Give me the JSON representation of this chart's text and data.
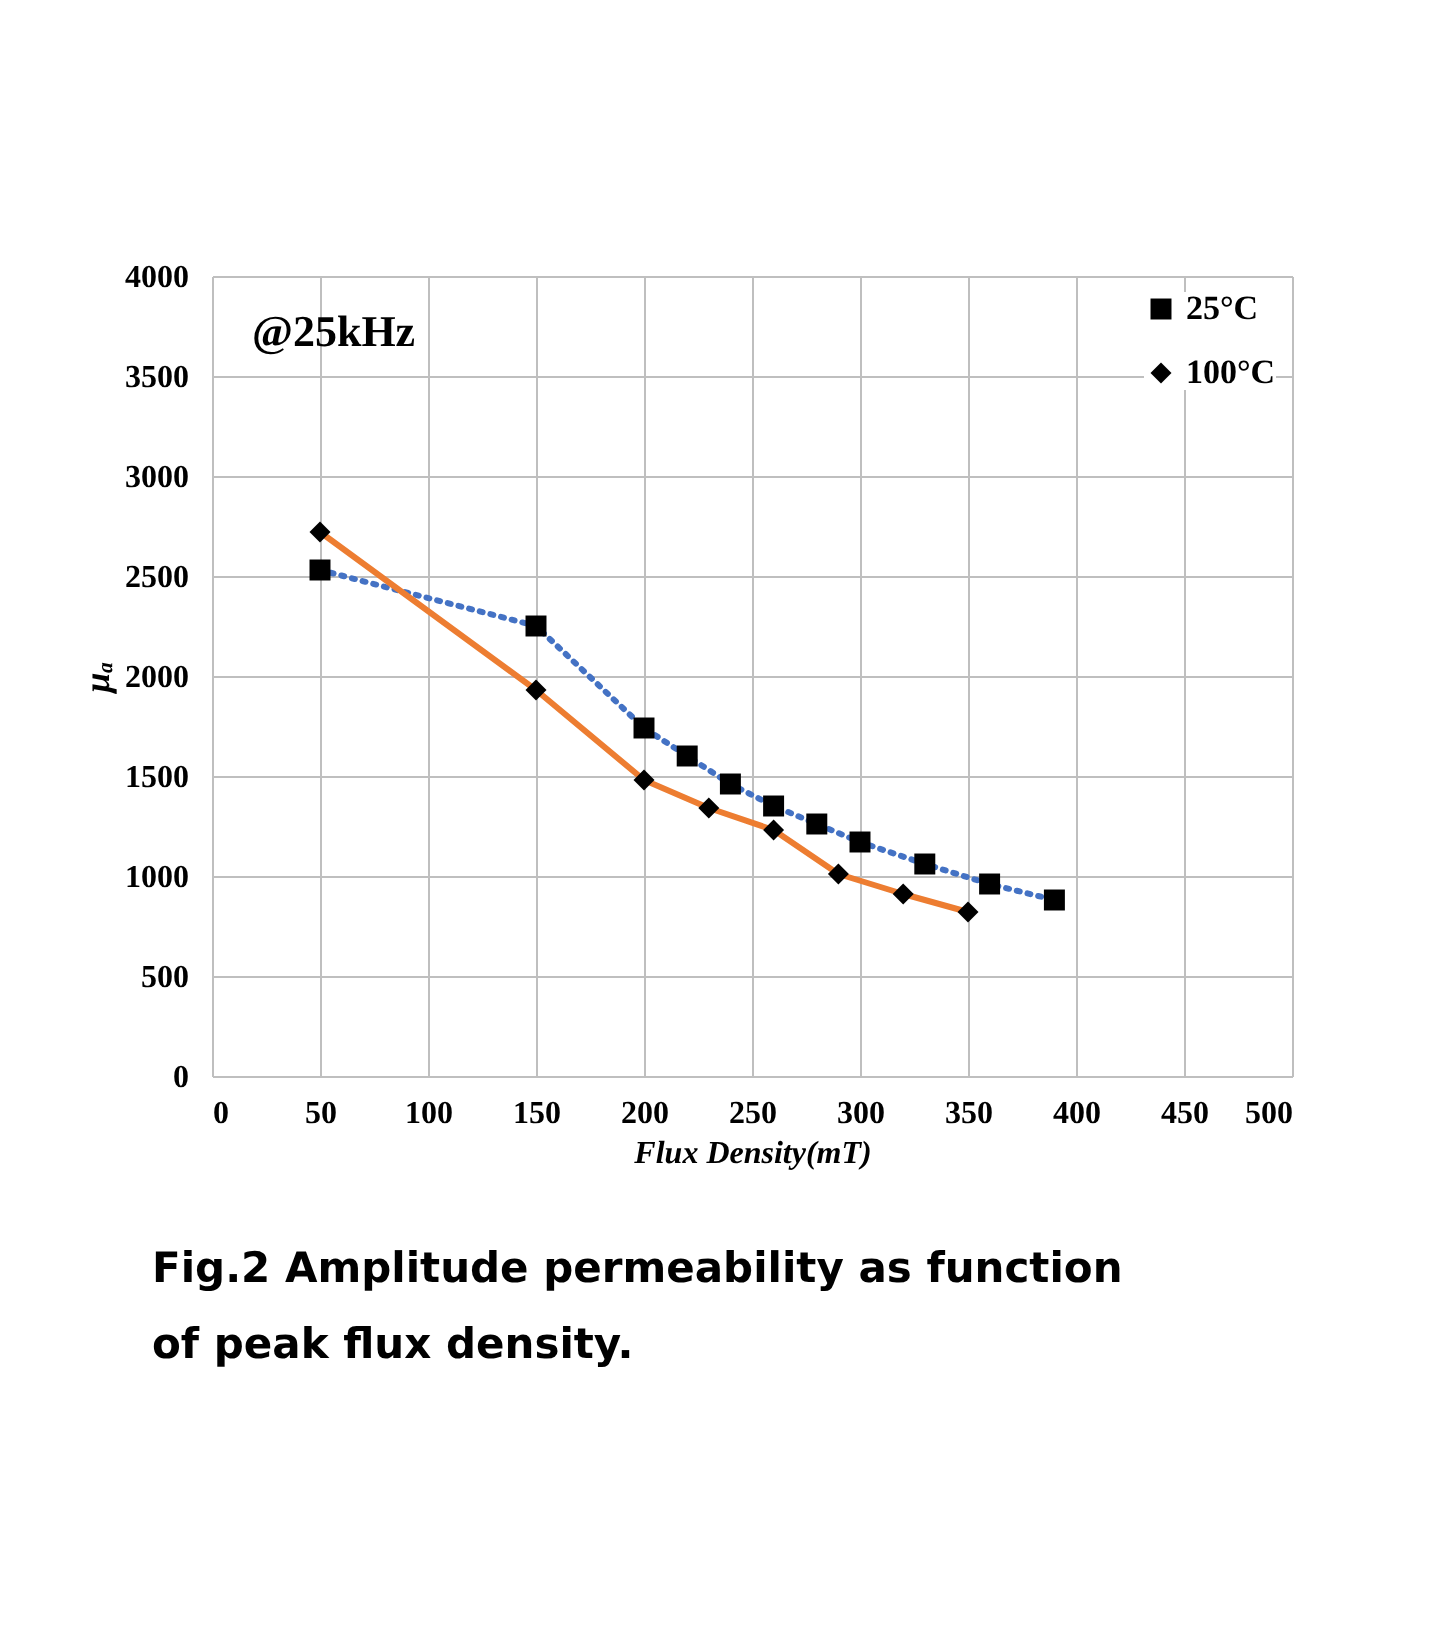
{
  "chart_data": {
    "type": "line",
    "xlabel": "Flux Density(mT)",
    "ylabel": "μₐ",
    "xlim": [
      0,
      500
    ],
    "xticks": [
      0,
      50,
      100,
      150,
      200,
      250,
      300,
      350,
      400,
      450,
      500
    ],
    "ylim": [
      0,
      4000
    ],
    "yticks": [
      0,
      500,
      1000,
      1500,
      2000,
      2500,
      3000,
      3500,
      4000
    ],
    "grid": true,
    "legend": "top right",
    "series": [
      {
        "name": "25°C",
        "color": "#4472c4",
        "line_style": "dotted",
        "marker": "square",
        "x": [
          50,
          150,
          200,
          220,
          240,
          260,
          280,
          300,
          330,
          360,
          390
        ],
        "values": [
          2530,
          2250,
          1740,
          1600,
          1460,
          1350,
          1260,
          1170,
          1060,
          960,
          880
        ]
      },
      {
        "name": "100°C",
        "color": "#ed7d31",
        "line_style": "solid",
        "marker": "diamond",
        "x": [
          50,
          150,
          200,
          230,
          260,
          290,
          320,
          350
        ],
        "values": [
          2720,
          1930,
          1480,
          1340,
          1230,
          1010,
          910,
          820
        ]
      }
    ],
    "annotations": [
      "@25kHz",
      "Fig.2 Amplitude permeability as function of peak flux density."
    ]
  }
}
